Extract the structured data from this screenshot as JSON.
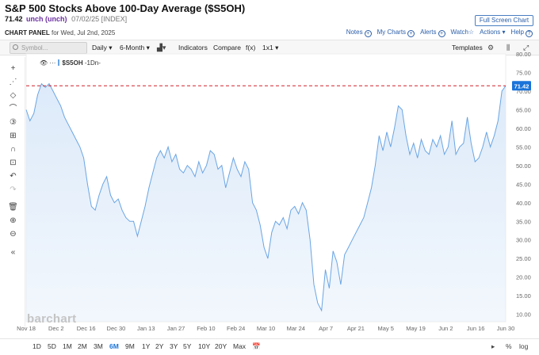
{
  "header": {
    "title": "S&P 500 Stocks Above 100-Day Average ($S5OH)",
    "price": "71.42",
    "change": "unch (unch)",
    "meta": "07/02/25 [INDEX]",
    "fullscreen_label": "Full Screen Chart"
  },
  "panel": {
    "label_bold": "CHART PANEL",
    "label_rest": " for Wed, Jul 2nd, 2025",
    "links": [
      "Notes",
      "My Charts",
      "Alerts",
      "Watch",
      "Actions",
      "Help"
    ]
  },
  "toolbar": {
    "symbol_placeholder": "Symbol...",
    "interval": "Daily",
    "period": "6-Month",
    "indicators": "Indicators",
    "compare": "Compare",
    "fx": "f(x)",
    "layout": "1x1",
    "templates": "Templates"
  },
  "legend": {
    "symbol": "$S5OH",
    "suffix": "-1Dn-"
  },
  "watermark": "barchart",
  "ranges": [
    "1D",
    "5D",
    "1M",
    "2M",
    "3M",
    "6M",
    "9M",
    "1Y",
    "2Y",
    "3Y",
    "5Y",
    "10Y",
    "20Y",
    "Max"
  ],
  "active_range": "6M",
  "bottom_right": [
    "%",
    "log"
  ],
  "sidebar_icons": [
    "crosshair-icon",
    "draw-lines-icon",
    "shapes-icon",
    "arc-icon",
    "count-icon",
    "fib-icon",
    "magnet-icon",
    "lock-icon",
    "undo-icon",
    "redo-icon",
    "trash-icon",
    "zoom-in-icon",
    "zoom-out-icon",
    "collapse-icon"
  ],
  "colors": {
    "line": "#6aa5e3",
    "fill": "#dbe9f9",
    "last_line": "#d0202a",
    "last_badge": "#1a73d9"
  },
  "chart_data": {
    "type": "area",
    "title": "S&P 500 Stocks Above 100-Day Average ($S5OH)",
    "ylim": [
      8,
      80
    ],
    "y_ticks": [
      "10.00",
      "15.00",
      "20.00",
      "25.00",
      "30.00",
      "35.00",
      "40.00",
      "45.00",
      "50.00",
      "55.00",
      "60.00",
      "65.00",
      "70.00",
      "75.00",
      "80.00"
    ],
    "x_ticks": [
      "Nov 18",
      "Dec 2",
      "Dec 16",
      "Dec 30",
      "Jan 13",
      "Jan 27",
      "Feb 10",
      "Feb 24",
      "Mar 10",
      "Mar 24",
      "Apr 7",
      "Apr 21",
      "May 5",
      "May 19",
      "Jun 2",
      "Jun 16",
      "Jun 30"
    ],
    "last_value": "71.42",
    "series": [
      {
        "values": [
          65,
          62,
          64,
          69,
          72,
          71,
          72,
          70,
          68,
          66,
          63,
          61,
          59,
          57,
          55,
          52,
          45,
          39,
          38,
          42,
          45,
          47,
          42,
          40,
          41,
          38,
          36,
          35,
          35,
          31,
          35,
          39,
          44,
          48,
          52,
          54,
          52,
          55,
          51,
          53,
          49,
          48,
          50,
          49,
          47,
          51,
          48,
          50,
          54,
          53,
          49,
          50,
          44,
          48,
          52,
          49,
          47,
          51,
          49,
          40,
          38,
          34,
          28,
          25,
          32,
          35,
          34,
          36,
          33,
          38,
          39,
          37,
          40,
          38,
          30,
          18,
          13,
          11,
          22,
          17,
          27,
          24,
          18,
          26,
          28,
          30,
          32,
          34,
          36,
          40,
          44,
          50,
          58,
          54,
          59,
          55,
          60,
          66,
          65,
          58,
          53,
          56,
          52,
          57,
          54,
          53,
          57,
          55,
          58,
          53,
          55,
          62,
          53,
          55,
          56,
          63,
          56,
          51,
          52,
          55,
          59,
          55,
          58,
          62,
          70,
          71.42
        ]
      }
    ]
  }
}
